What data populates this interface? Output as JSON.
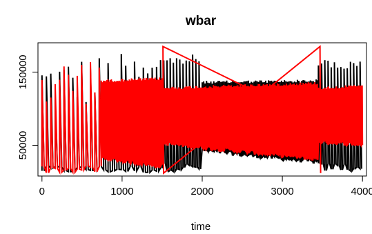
{
  "chart_data": {
    "type": "line",
    "title": "wbar",
    "xlabel": "time",
    "ylabel": "",
    "xlim": [
      -50,
      4050
    ],
    "ylim": [
      8000,
      190000
    ],
    "x_ticks": [
      0,
      1000,
      2000,
      3000,
      4000
    ],
    "x_tick_labels": [
      "0",
      "1000",
      "2000",
      "3000",
      "4000"
    ],
    "y_ticks": [
      50000,
      150000
    ],
    "y_tick_labels": [
      "50000",
      "150000"
    ],
    "grid": false,
    "legend": "none",
    "series": [
      {
        "color": "#000000",
        "line_width": 2,
        "segments": [
          {
            "x_start": 0,
            "x_end": 1470,
            "low": 12000,
            "high_start": 170000,
            "high_end": 180000,
            "spike_spacing": 55,
            "style": "irregular"
          },
          {
            "x_start": 1480,
            "x_end": 2000,
            "low": 14000,
            "high_start": 172000,
            "high_end": 175000,
            "spike_spacing": 40,
            "style": "oscillation"
          },
          {
            "x_start": 2000,
            "x_end": 3450,
            "low_start": 40000,
            "low_end": 24000,
            "high_start": 138000,
            "high_end": 140000,
            "spike_spacing": 18,
            "style": "band"
          },
          {
            "x_start": 3450,
            "x_end": 4000,
            "low": 14000,
            "high_start": 170000,
            "high_end": 165000,
            "spike_spacing": 40,
            "style": "oscillation"
          }
        ]
      },
      {
        "color": "#ff0000",
        "line_width": 2,
        "segments": [
          {
            "x_start": 0,
            "x_end": 740,
            "low": 12000,
            "high_start": 165000,
            "high_end": 182000,
            "spike_spacing": 55,
            "style": "irregular"
          },
          {
            "x_start": 740,
            "x_end": 1500,
            "low_start": 30000,
            "low_end": 18000,
            "high_start": 140000,
            "high_end": 143000,
            "spike_spacing": 14,
            "style": "band"
          },
          {
            "x_start": 1500,
            "x_end": 3450,
            "low_start": 50000,
            "low_end": 28000,
            "high_start": 130000,
            "high_end": 137000,
            "spike_spacing": 16,
            "style": "band"
          },
          {
            "x_start": 3450,
            "x_end": 4000,
            "low_start": 52000,
            "low_end": 48000,
            "high_start": 130000,
            "high_end": 133000,
            "spike_spacing": 14,
            "style": "band"
          }
        ],
        "spikes": [
          {
            "x": 1510,
            "y": 185000
          },
          {
            "x": 3470,
            "y": 185000
          }
        ]
      }
    ]
  }
}
